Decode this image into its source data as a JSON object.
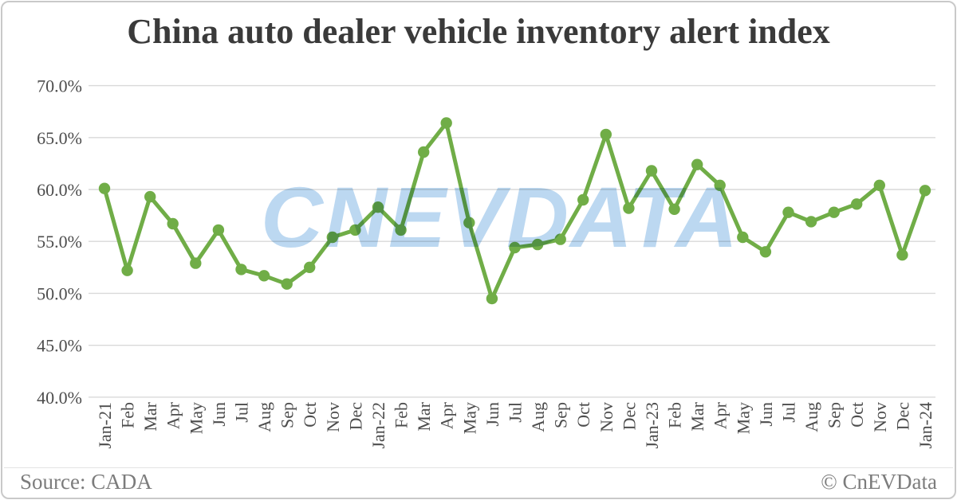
{
  "card": {
    "title": "China auto dealer vehicle inventory alert index",
    "watermark": "CnEVData",
    "footer": {
      "source": "Source: CADA",
      "credit": "© CnEVData"
    }
  },
  "colors": {
    "line": "#70AD47",
    "grid": "#D9D9D9",
    "watermark": "#BCD8F1",
    "title": "#3A3A3A",
    "axis_labels": "#4D4D4D",
    "footer_text": "#7C7C7C",
    "card_border": "#C9C9C9"
  },
  "chart_data": {
    "type": "line",
    "title": "China auto dealer vehicle inventory alert index",
    "xlabel": "",
    "ylabel": "",
    "ylim": [
      40,
      70
    ],
    "yticks": [
      70,
      65,
      60,
      55,
      50,
      45,
      40
    ],
    "ytick_labels": [
      "70.0%",
      "65.0%",
      "60.0%",
      "55.0%",
      "50.0%",
      "45.0%",
      "40.0%"
    ],
    "grid": "horizontal",
    "legend": "none",
    "marker": "circle",
    "categories": [
      "Jan-21",
      "Feb",
      "Mar",
      "Apr",
      "May",
      "Jun",
      "Jul",
      "Aug",
      "Sep",
      "Oct",
      "Nov",
      "Dec",
      "Jan-22",
      "Feb",
      "Mar",
      "Apr",
      "May",
      "Jun",
      "Jul",
      "Aug",
      "Sep",
      "Oct",
      "Nov",
      "Dec",
      "Jan-23",
      "Feb",
      "Mar",
      "Apr",
      "May",
      "Jun",
      "Jul",
      "Aug",
      "Sep",
      "Oct",
      "Nov",
      "Dec",
      "Jan-24"
    ],
    "series": [
      {
        "name": "Inventory alert index",
        "values": [
          60.1,
          52.2,
          59.3,
          56.7,
          52.9,
          56.1,
          52.3,
          51.7,
          50.9,
          52.5,
          55.4,
          56.1,
          58.3,
          56.1,
          63.6,
          66.4,
          56.8,
          49.5,
          54.4,
          54.7,
          55.2,
          59.0,
          65.3,
          58.2,
          61.8,
          58.1,
          62.4,
          60.4,
          55.4,
          54.0,
          57.8,
          56.9,
          57.8,
          58.6,
          60.4,
          53.7,
          59.9
        ]
      }
    ]
  }
}
